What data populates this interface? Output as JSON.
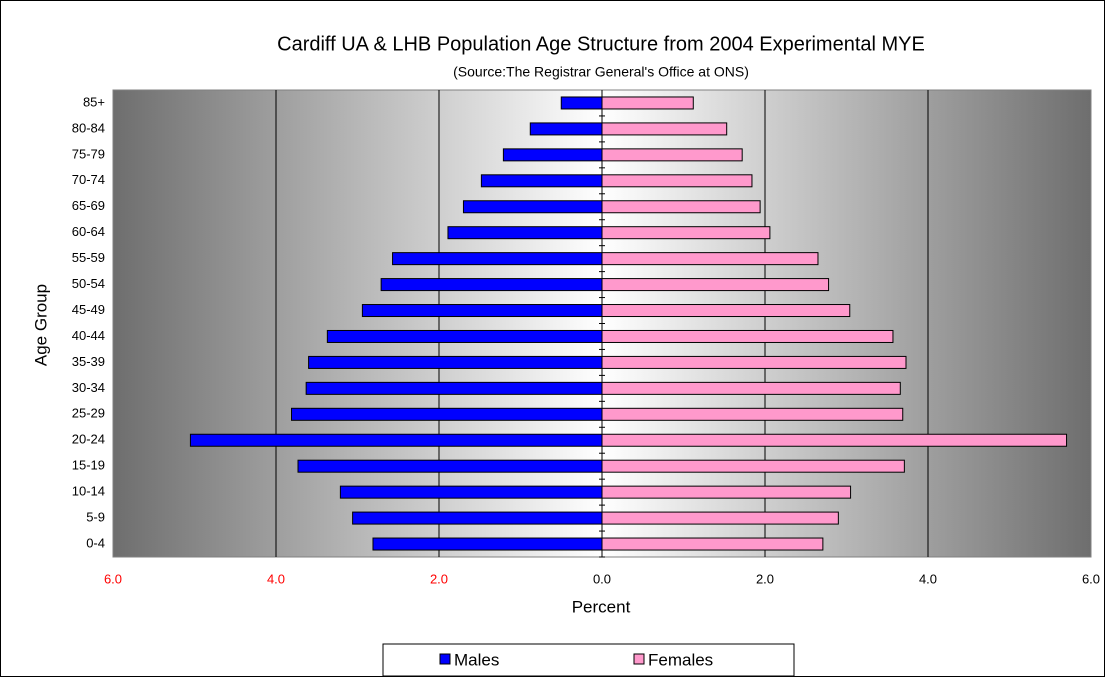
{
  "chart_data": {
    "type": "pyramid",
    "title": "Cardiff UA & LHB Population Age Structure from 2004 Experimental MYE",
    "subtitle": "(Source:The Registrar General's Office at ONS)",
    "x_label": "Percent",
    "y_label": "Age Group",
    "categories": [
      "0-4",
      "5-9",
      "10-14",
      "15-19",
      "20-24",
      "25-29",
      "30-34",
      "35-39",
      "40-44",
      "45-49",
      "50-54",
      "55-59",
      "60-64",
      "65-69",
      "70-74",
      "75-79",
      "80-84",
      "85+"
    ],
    "series": [
      {
        "name": "Males",
        "color": "#0000ff",
        "values": [
          -2.81,
          -3.06,
          -3.21,
          -3.73,
          -5.05,
          -3.81,
          -3.63,
          -3.6,
          -3.37,
          -2.94,
          -2.71,
          -2.57,
          -1.89,
          -1.7,
          -1.48,
          -1.21,
          -0.88,
          -0.5
        ]
      },
      {
        "name": "Females",
        "color": "#ff99cc",
        "values": [
          2.71,
          2.9,
          3.05,
          3.71,
          5.7,
          3.69,
          3.66,
          3.73,
          3.57,
          3.04,
          2.78,
          2.65,
          2.06,
          1.94,
          1.84,
          1.72,
          1.53,
          1.12
        ]
      }
    ],
    "xlim": [
      -6,
      6
    ],
    "xticks": [
      {
        "value": -6,
        "label": "6.0"
      },
      {
        "value": -4,
        "label": "4.0"
      },
      {
        "value": -2,
        "label": "2.0"
      },
      {
        "value": 0,
        "label": "0.0"
      },
      {
        "value": 2,
        "label": "2.0"
      },
      {
        "value": 4,
        "label": "4.0"
      },
      {
        "value": 6,
        "label": "6.0"
      }
    ],
    "negative_tick_color": "#ff0000",
    "grid": true,
    "legend": "bottom"
  }
}
